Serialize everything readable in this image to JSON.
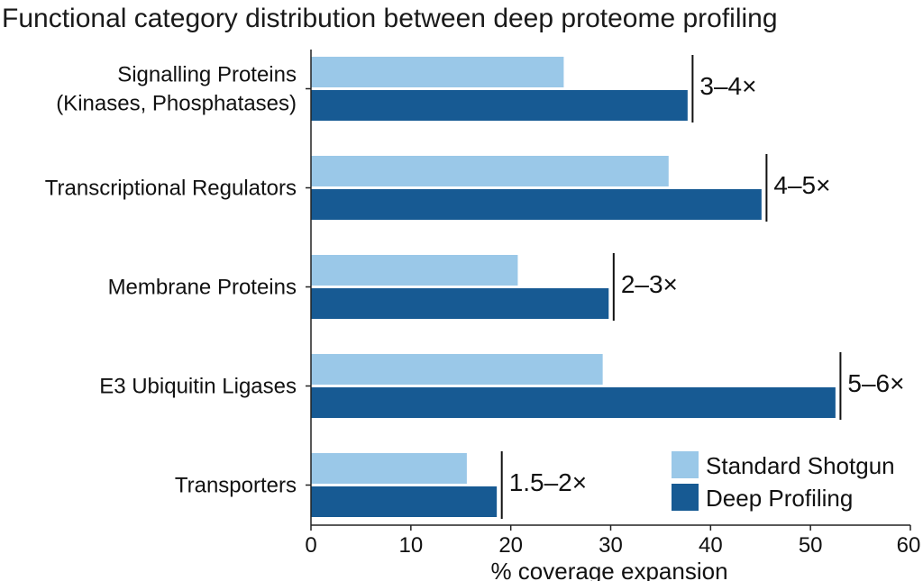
{
  "chart_data": {
    "type": "bar",
    "orientation": "horizontal",
    "title": "Functional category distribution between deep proteome profiling",
    "xlabel": "% coverage expansion",
    "ylabel": "",
    "xlim": [
      0,
      60
    ],
    "xticks": [
      0,
      10,
      20,
      30,
      40,
      50,
      60
    ],
    "grid": false,
    "legend_position": "bottom-right",
    "categories": [
      [
        "Signalling Proteins",
        "(Kinases, Phosphatases)"
      ],
      [
        "Transcriptional Regulators"
      ],
      [
        "Membrane Proteins"
      ],
      [
        "E3 Ubiquitin Ligases"
      ],
      [
        "Transporters"
      ]
    ],
    "series": [
      {
        "name": "Standard Shotgun",
        "color": "#9ac8e8",
        "values": [
          25.3,
          35.8,
          20.7,
          29.2,
          15.6
        ]
      },
      {
        "name": "Deep Profiling",
        "color": "#175a93",
        "values": [
          37.7,
          45.1,
          29.8,
          52.5,
          18.6
        ]
      }
    ],
    "annotations": [
      {
        "category_index": 0,
        "label": "3–4×",
        "at": 38.2
      },
      {
        "category_index": 1,
        "label": "4–5×",
        "at": 45.6
      },
      {
        "category_index": 2,
        "label": "2–3×",
        "at": 30.3
      },
      {
        "category_index": 3,
        "label": "5–6×",
        "at": 53.0
      },
      {
        "category_index": 4,
        "label": "1.5–2×",
        "at": 19.1
      }
    ]
  }
}
